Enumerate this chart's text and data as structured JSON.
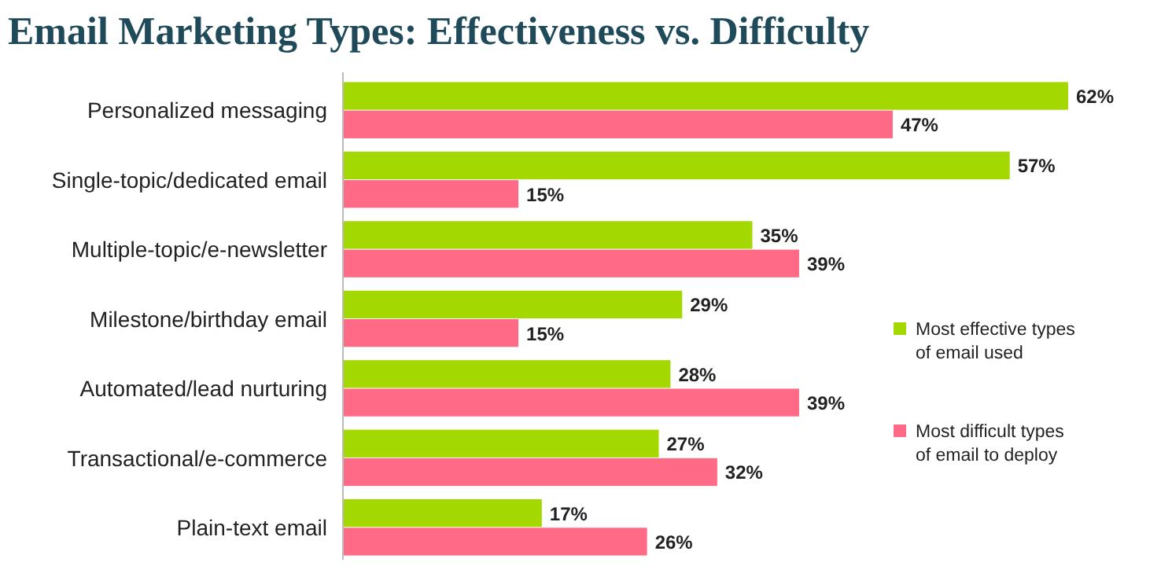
{
  "chart_data": {
    "type": "bar",
    "orientation": "horizontal",
    "title": "Email Marketing Types: Effectiveness vs. Difficulty",
    "categories": [
      "Personalized messaging",
      "Single-topic/dedicated email",
      "Multiple-topic/e-newsletter",
      "Milestone/birthday email",
      "Automated/lead nurturing",
      "Transactional/e-commerce",
      "Plain-text email"
    ],
    "series": [
      {
        "name": "Most effective types of email used",
        "color": "#a3d900",
        "values": [
          62,
          57,
          35,
          29,
          28,
          27,
          17
        ],
        "value_labels": [
          "62%",
          "57%",
          "35%",
          "29%",
          "28%",
          "27%",
          "17%"
        ]
      },
      {
        "name": "Most difficult types of email to deploy",
        "color": "#ff6b86",
        "values": [
          47,
          15,
          39,
          15,
          39,
          32,
          26
        ],
        "value_labels": [
          "47%",
          "15%",
          "39%",
          "15%",
          "39%",
          "32%",
          "26%"
        ]
      }
    ],
    "legend": "right"
  }
}
